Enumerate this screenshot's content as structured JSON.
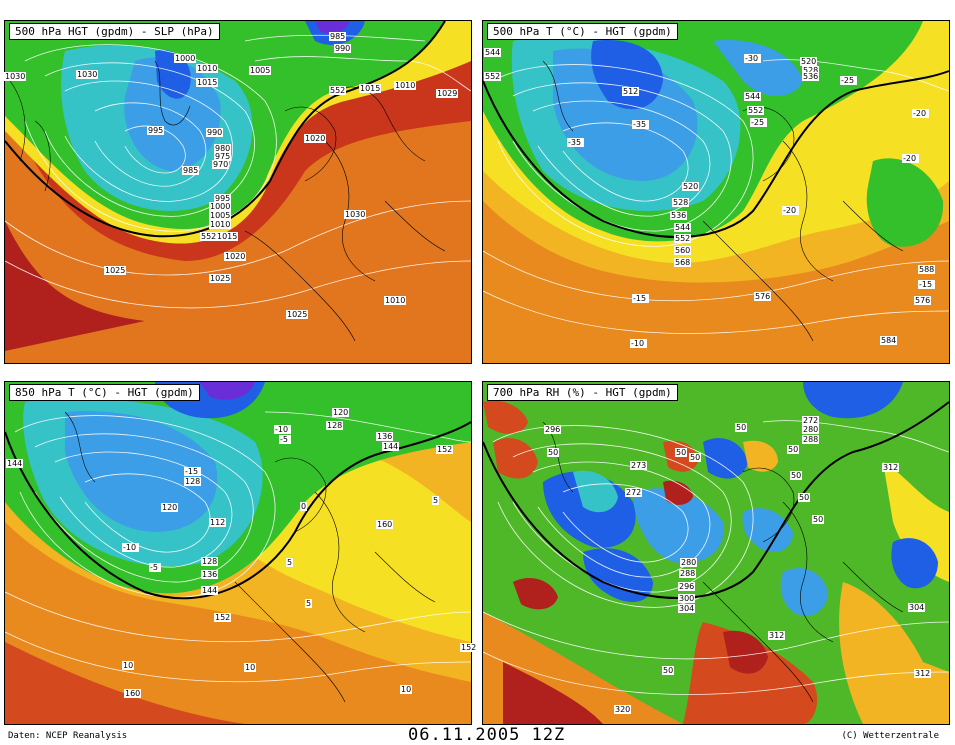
{
  "header": {
    "source": "Daten: NCEP Reanalysis",
    "datetime": "06.11.2005 12Z",
    "copyright": "(C) Wetterzentrale"
  },
  "panels": [
    {
      "title": "500 hPa HGT (gpdm) - SLP (hPa)",
      "labels": [
        "985",
        "990",
        "1000",
        "1010",
        "1015",
        "1005",
        "1030",
        "995",
        "990",
        "980",
        "975",
        "970",
        "985",
        "995",
        "1000",
        "1005",
        "1010",
        "552",
        "1015",
        "1020",
        "1030",
        "1025",
        "1025",
        "1025",
        "1010",
        "1020",
        "1015",
        "1010",
        "1029",
        "552",
        "1030"
      ]
    },
    {
      "title": "500 hPa T (°C) - HGT (gpdm)",
      "labels": [
        "544",
        "552",
        "512",
        "-35",
        "-35",
        "520",
        "528",
        "536",
        "544",
        "552",
        "560",
        "568",
        "-30",
        "520",
        "528",
        "536",
        "544",
        "552",
        "-25",
        "-25",
        "-20",
        "-20",
        "-20",
        "-15",
        "-10",
        "576",
        "584",
        "588",
        "576",
        "-15"
      ]
    },
    {
      "title": "850 hPa T (°C) - HGT (gpdm)",
      "labels": [
        "144",
        "-15",
        "128",
        "120",
        "112",
        "128",
        "136",
        "144",
        "-10",
        "-5",
        "152",
        "10",
        "160",
        "10",
        "10",
        "5",
        "-10",
        "-5",
        "120",
        "128",
        "136",
        "144",
        "152",
        "0",
        "160",
        "5",
        "152",
        "5"
      ]
    },
    {
      "title": "700 hPa RH (%) - HGT (gpdm)",
      "labels": [
        "296",
        "50",
        "273",
        "272",
        "50",
        "50",
        "50",
        "50",
        "280",
        "288",
        "296",
        "300",
        "304",
        "50",
        "272",
        "280",
        "288",
        "312",
        "50",
        "50",
        "304",
        "312",
        "312",
        "320",
        "50"
      ]
    }
  ],
  "colors": {
    "deep_red": "#b0201c",
    "red": "#d44a1e",
    "orange": "#e98a1e",
    "light_orange": "#f2b422",
    "yellow": "#f5e024",
    "green": "#33c02a",
    "cyan": "#36c3c8",
    "light_blue": "#3c9ee6",
    "blue": "#1e5fe6",
    "violet": "#6a2ed8"
  }
}
